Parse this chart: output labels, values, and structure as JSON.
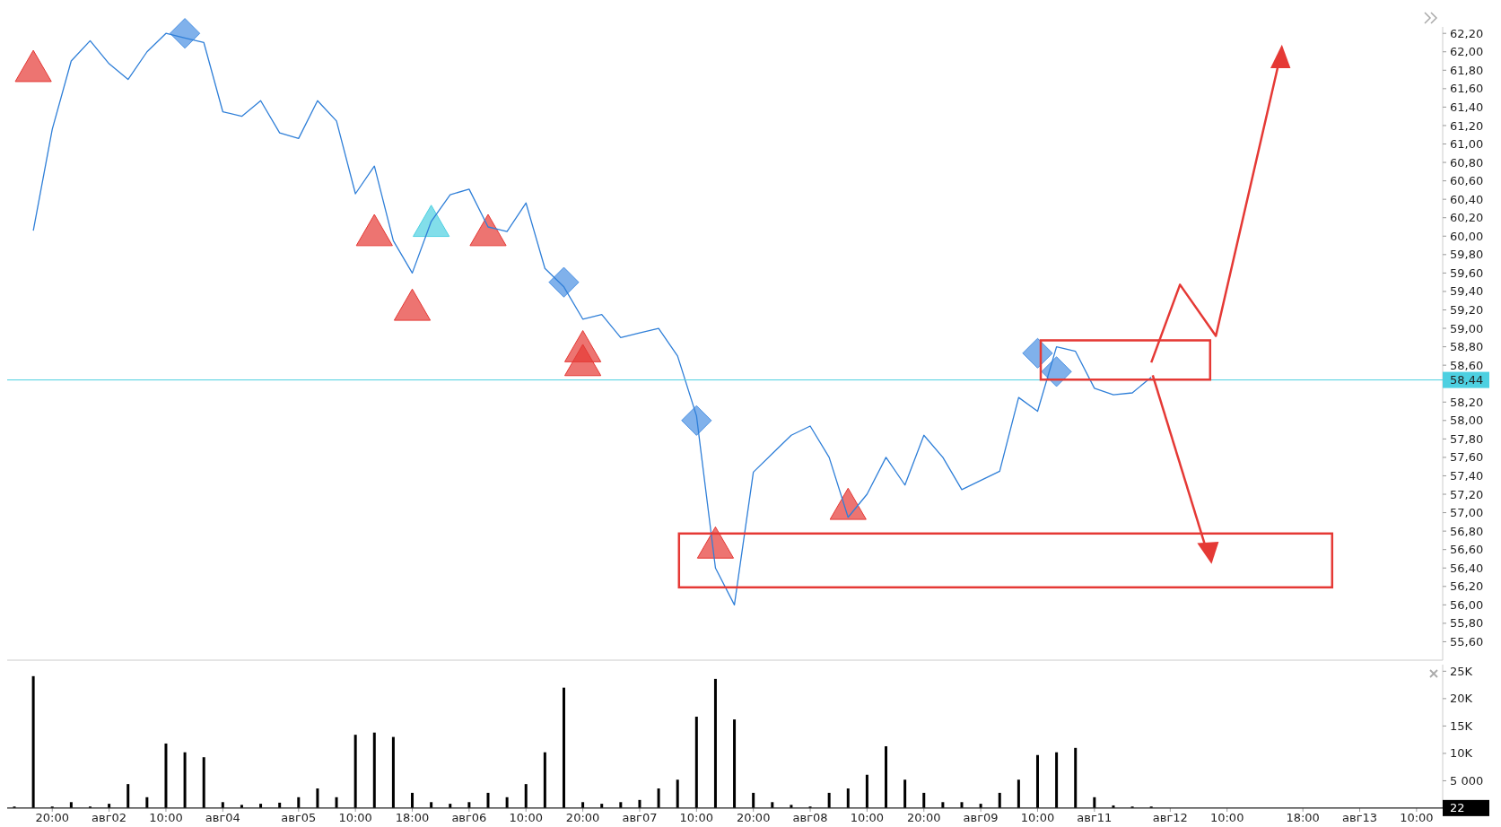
{
  "chart_data": [
    {
      "type": "line",
      "ylim": [
        55.4,
        62.27
      ],
      "tick_labels": "y",
      "yticks": [
        {
          "value": 55.6,
          "label": "55,60"
        },
        {
          "value": 55.8,
          "label": "55,80"
        },
        {
          "value": 56,
          "label": "56,00"
        },
        {
          "value": 56.2,
          "label": "56,20"
        },
        {
          "value": 56.4,
          "label": "56,40"
        },
        {
          "value": 56.6,
          "label": "56,60"
        },
        {
          "value": 56.8,
          "label": "56,80"
        },
        {
          "value": 57,
          "label": "57,00"
        },
        {
          "value": 57.2,
          "label": "57,20"
        },
        {
          "value": 57.4,
          "label": "57,40"
        },
        {
          "value": 57.6,
          "label": "57,60"
        },
        {
          "value": 57.8,
          "label": "57,80"
        },
        {
          "value": 58,
          "label": "58,00"
        },
        {
          "value": 58.2,
          "label": "58,20"
        },
        {
          "value": 58.6,
          "label": "58,60"
        },
        {
          "value": 58.8,
          "label": "58,80"
        },
        {
          "value": 59,
          "label": "59,00"
        },
        {
          "value": 59.2,
          "label": "59,20"
        },
        {
          "value": 59.4,
          "label": "59,40"
        },
        {
          "value": 59.6,
          "label": "59,60"
        },
        {
          "value": 59.8,
          "label": "59,80"
        },
        {
          "value": 60,
          "label": "60,00"
        },
        {
          "value": 60.2,
          "label": "60,20"
        },
        {
          "value": 60.4,
          "label": "60,40"
        },
        {
          "value": 60.6,
          "label": "60,60"
        },
        {
          "value": 60.8,
          "label": "60,80"
        },
        {
          "value": 61,
          "label": "61,00"
        },
        {
          "value": 61.2,
          "label": "61,20"
        },
        {
          "value": 61.4,
          "label": "61,40"
        },
        {
          "value": 61.6,
          "label": "61,60"
        },
        {
          "value": 61.8,
          "label": "61,80"
        },
        {
          "value": 62,
          "label": "62,00"
        },
        {
          "value": 62.2,
          "label": "62,20"
        }
      ],
      "series": [
        {
          "color": "#2f7fd8",
          "values": [
            null,
            60.06,
            61.16,
            61.9,
            62.12,
            61.87,
            61.7,
            62.0,
            62.2,
            62.15,
            62.1,
            61.35,
            61.3,
            61.47,
            61.12,
            61.06,
            61.47,
            61.25,
            60.46,
            60.76,
            59.95,
            59.6,
            60.16,
            60.45,
            60.51,
            60.1,
            60.05,
            60.36,
            59.65,
            59.45,
            59.1,
            59.15,
            58.9,
            58.95,
            59.0,
            58.7,
            58.05,
            56.4,
            56.0,
            57.44,
            57.64,
            57.84,
            57.94,
            57.6,
            56.95,
            57.2,
            57.6,
            57.3,
            57.84,
            57.6,
            57.25,
            57.35,
            57.45,
            58.25,
            58.1,
            58.8,
            58.75,
            58.35,
            58.28,
            58.3,
            58.47,
            null,
            null,
            null,
            null,
            null,
            null,
            null,
            null,
            null,
            null,
            null,
            null,
            null,
            null,
            null
          ]
        },
        {
          "type": "scatter",
          "marker": "triangle",
          "color": "#e53935",
          "values": [
            null,
            61.79,
            null,
            null,
            null,
            null,
            null,
            null,
            null,
            null,
            null,
            null,
            null,
            null,
            null,
            null,
            null,
            null,
            null,
            60.01,
            null,
            59.2,
            null,
            null,
            null,
            60.01,
            null,
            null,
            null,
            null,
            58.75,
            null,
            null,
            null,
            null,
            null,
            null,
            56.62,
            null,
            null,
            null,
            null,
            null,
            null,
            57.04,
            null,
            null,
            null,
            null,
            null,
            null,
            null,
            null,
            null,
            null,
            null,
            null,
            null,
            null,
            null,
            null,
            null,
            null,
            null,
            null,
            null,
            null,
            null,
            null,
            null,
            null,
            null,
            null,
            null,
            null,
            null
          ]
        },
        {
          "type": "scatter",
          "marker": "triangle",
          "color": "#e53935",
          "values": [
            null,
            null,
            null,
            null,
            null,
            null,
            null,
            null,
            null,
            null,
            null,
            null,
            null,
            null,
            null,
            null,
            null,
            null,
            null,
            null,
            null,
            null,
            null,
            null,
            null,
            null,
            null,
            null,
            null,
            null,
            58.6,
            null,
            null,
            null,
            null,
            null,
            null,
            null,
            null,
            null,
            null,
            null,
            null,
            null,
            null,
            null,
            null,
            null,
            null,
            null,
            null,
            null,
            null,
            null,
            null,
            null,
            null,
            null,
            null,
            null,
            null,
            null,
            null,
            null,
            null,
            null,
            null,
            null,
            null,
            null,
            null,
            null,
            null,
            null,
            null,
            null
          ]
        },
        {
          "type": "scatter",
          "marker": "triangle",
          "color": "#4dd0e1",
          "values": [
            null,
            null,
            null,
            null,
            null,
            null,
            null,
            null,
            null,
            null,
            null,
            null,
            null,
            null,
            null,
            null,
            null,
            null,
            null,
            null,
            null,
            null,
            60.11,
            null,
            null,
            null,
            null,
            null,
            null,
            null,
            null,
            null,
            null,
            null,
            null,
            null,
            null,
            null,
            null,
            null,
            null,
            null,
            null,
            null,
            null,
            null,
            null,
            null,
            null,
            null,
            null,
            null,
            null,
            null,
            null,
            null,
            null,
            null,
            null,
            null,
            null,
            null,
            null,
            null,
            null,
            null,
            null,
            null,
            null,
            null,
            null,
            null,
            null,
            null,
            null,
            null
          ]
        },
        {
          "type": "scatter",
          "marker": "diamond",
          "color": "#4a90e2",
          "values": [
            null,
            null,
            null,
            null,
            null,
            null,
            null,
            null,
            null,
            62.2,
            null,
            null,
            null,
            null,
            null,
            null,
            null,
            null,
            null,
            null,
            null,
            null,
            null,
            null,
            null,
            null,
            null,
            null,
            null,
            59.5,
            null,
            null,
            null,
            null,
            null,
            null,
            58.0,
            null,
            null,
            null,
            null,
            null,
            null,
            null,
            null,
            null,
            null,
            null,
            null,
            null,
            null,
            null,
            null,
            null,
            58.73,
            58.53,
            null,
            null,
            null,
            null,
            null,
            null,
            null,
            null,
            null,
            null,
            null,
            null,
            null,
            null,
            null,
            null,
            null,
            null,
            null,
            null
          ]
        }
      ],
      "ref_lines": [
        {
          "axis": "y",
          "value": 58.44,
          "label": "58,44",
          "color": "#4dd0e1"
        }
      ]
    },
    {
      "type": "bar",
      "color": "#000000",
      "ylim": [
        0,
        26200
      ],
      "categories": [
        null,
        null,
        "20:00",
        null,
        null,
        "авг02",
        null,
        null,
        "10:00",
        null,
        null,
        "авг04",
        null,
        null,
        null,
        "авг05",
        null,
        null,
        "10:00",
        null,
        null,
        "18:00",
        null,
        null,
        "авг06",
        null,
        null,
        "10:00",
        null,
        null,
        "20:00",
        null,
        null,
        "авг07",
        null,
        null,
        "10:00",
        null,
        null,
        "20:00",
        null,
        null,
        "авг08",
        null,
        null,
        "10:00",
        null,
        null,
        "20:00",
        null,
        null,
        "авг09",
        null,
        null,
        "10:00",
        null,
        null,
        "авг11",
        null,
        null,
        null,
        "авг12",
        null,
        null,
        "10:00",
        null,
        null,
        null,
        "18:00",
        null,
        null,
        "авг13",
        null,
        null,
        "10:00",
        null
      ],
      "yticks": [
        {
          "value": 5000,
          "label": "5 000"
        },
        {
          "value": 10000,
          "label": "10K"
        },
        {
          "value": 15000,
          "label": "15K"
        },
        {
          "value": 20000,
          "label": "20K"
        },
        {
          "value": 25000,
          "label": "25K"
        }
      ],
      "values": [
        300,
        24100,
        300,
        1100,
        300,
        800,
        4400,
        2000,
        11800,
        10200,
        9300,
        1100,
        600,
        800,
        1000,
        2000,
        3600,
        2000,
        13400,
        13800,
        13000,
        2800,
        1100,
        800,
        1100,
        2800,
        2000,
        4400,
        10200,
        22000,
        1100,
        800,
        1100,
        1500,
        3600,
        5200,
        16700,
        23600,
        16200,
        2800,
        1100,
        600,
        300,
        2800,
        3600,
        6100,
        11300,
        5200,
        2800,
        1100,
        1100,
        800,
        2800,
        5200,
        9700,
        10200,
        11000,
        2000,
        500,
        300,
        300,
        null,
        null,
        null,
        null,
        null,
        null,
        null,
        null,
        null,
        null,
        null,
        null,
        null,
        null,
        null
      ],
      "ref_lines": [
        {
          "axis": "y",
          "value": 22,
          "label": "22",
          "color": "#000000"
        }
      ]
    }
  ]
}
